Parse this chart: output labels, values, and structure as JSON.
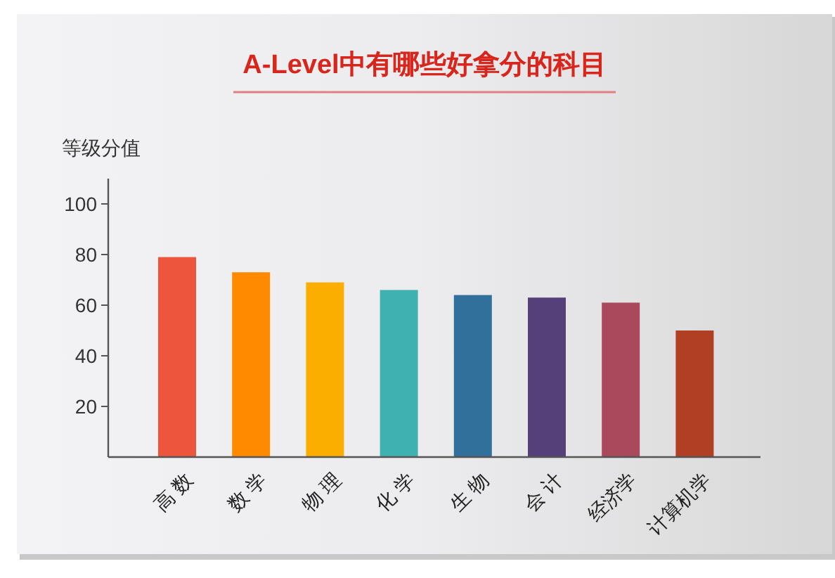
{
  "chart_data": {
    "type": "bar",
    "title": "A-Level中有哪些好拿分的科目",
    "ylabel": "等级分值",
    "categories": [
      "高 数",
      "数 学",
      "物 理",
      "化 学",
      "生 物",
      "会 计",
      "经济学",
      "计算机学"
    ],
    "values": [
      79,
      73,
      69,
      66,
      64,
      63,
      61,
      50
    ],
    "colors": [
      "#ee553d",
      "#ff8a00",
      "#fbad00",
      "#40b1b1",
      "#31709b",
      "#56407a",
      "#aa485c",
      "#b13f24"
    ],
    "ylim": [
      0,
      110
    ],
    "yticks": [
      20,
      40,
      60,
      80,
      100
    ],
    "grid": false
  }
}
